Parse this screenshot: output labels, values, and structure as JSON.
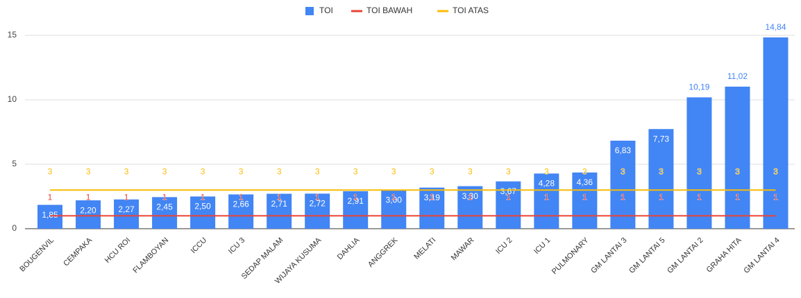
{
  "chart_data": {
    "type": "bar",
    "categories": [
      "BOUGENVIL",
      "CEMPAKA",
      "HCU ROI",
      "FLAMBOYAN",
      "ICCU",
      "ICU 3",
      "SEDAP MALAM",
      "WIJAYA KUSUMA",
      "DAHLIA",
      "ANGGREK",
      "MELATI",
      "MAWAR",
      "ICU 2",
      "ICU 1",
      "PULMONARY",
      "GM LANTAI 3",
      "GM LANTAI 5",
      "GM LANTAI 2",
      "GRAHA HITA",
      "GM LANTAI 4"
    ],
    "series": [
      {
        "name": "TOI",
        "type": "bar",
        "color": "#4285f4",
        "values": [
          1.85,
          2.2,
          2.27,
          2.45,
          2.5,
          2.66,
          2.71,
          2.72,
          2.91,
          3.0,
          3.19,
          3.3,
          3.67,
          4.28,
          4.36,
          6.83,
          7.73,
          10.19,
          11.02,
          14.84
        ],
        "value_labels": [
          "1,85",
          "2,20",
          "2,27",
          "2,45",
          "2,50",
          "2,66",
          "2,71",
          "2,72",
          "2,91",
          "3,00",
          "3,19",
          "3,30",
          "3,67",
          "4,28",
          "4,36",
          "6,83",
          "7,73",
          "10,19",
          "11,02",
          "14,84"
        ]
      },
      {
        "name": "TOI BAWAH",
        "type": "line",
        "color": "#ea4335",
        "values": [
          1,
          1,
          1,
          1,
          1,
          1,
          1,
          1,
          1,
          1,
          1,
          1,
          1,
          1,
          1,
          1,
          1,
          1,
          1,
          1
        ]
      },
      {
        "name": "TOI ATAS",
        "type": "line",
        "color": "#fbbc04",
        "values": [
          3,
          3,
          3,
          3,
          3,
          3,
          3,
          3,
          3,
          3,
          3,
          3,
          3,
          3,
          3,
          3,
          3,
          3,
          3,
          3
        ]
      }
    ],
    "ylim": [
      0,
      15
    ],
    "yticks": [
      0,
      5,
      10,
      15
    ],
    "grid": true,
    "legend": "top"
  }
}
